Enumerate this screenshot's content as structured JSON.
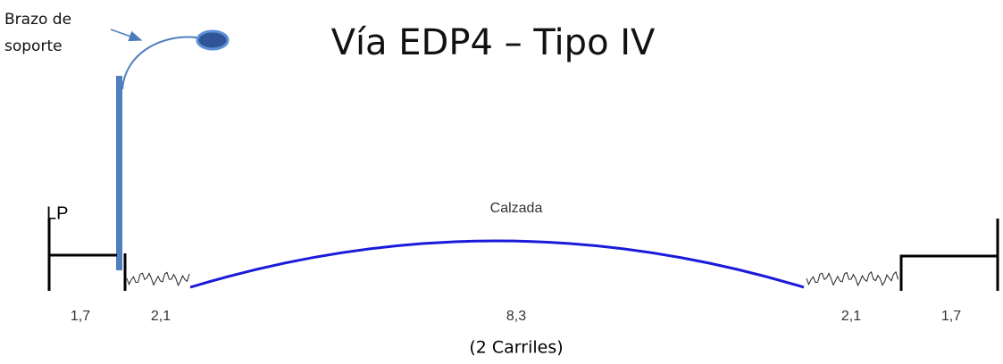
{
  "title": "Vía EDP4 – Tipo IV",
  "callout": {
    "lines": [
      "Brazo de",
      "soporte"
    ]
  },
  "boundary_label": "LP",
  "roadway_label": "Calzada",
  "dimensions": [
    "1,7",
    "2,1",
    "8,3",
    "2,1",
    "1,7"
  ],
  "lanes_note": "(2 Carriles)"
}
